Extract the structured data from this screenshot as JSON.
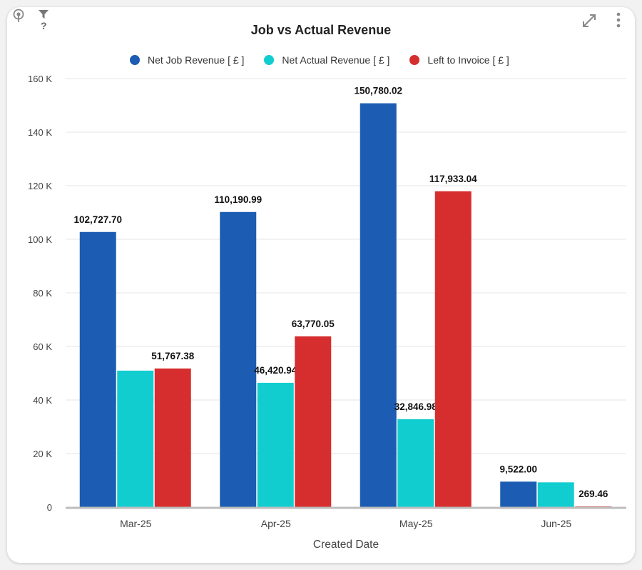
{
  "widget": {
    "title": "Job vs Actual Revenue",
    "help_glyph": "?",
    "icons": [
      "pin-icon",
      "filter-icon",
      "question-icon",
      "expand-icon",
      "kebab-menu-icon"
    ]
  },
  "legend": [
    {
      "label": "Net Job Revenue [ £ ]",
      "color": "#1c5db3"
    },
    {
      "label": "Net Actual Revenue [ £ ]",
      "color": "#12cdd0"
    },
    {
      "label": "Left to Invoice [ £ ]",
      "color": "#d62e2e"
    }
  ],
  "chart_data": {
    "type": "bar",
    "title": "Job vs Actual Revenue",
    "xlabel": "Created Date",
    "ylabel": "",
    "categories": [
      "Mar-25",
      "Apr-25",
      "May-25",
      "Jun-25"
    ],
    "ylim": [
      0,
      160000
    ],
    "yticks": [
      0,
      20000,
      40000,
      60000,
      80000,
      100000,
      120000,
      140000,
      160000
    ],
    "ytick_labels": [
      "0",
      "20 K",
      "40 K",
      "60 K",
      "80 K",
      "100 K",
      "120 K",
      "140 K",
      "160 K"
    ],
    "grid": true,
    "legend_position": "top",
    "series": [
      {
        "name": "Net Job Revenue [ £ ]",
        "color": "#1c5db3",
        "values": [
          102727.7,
          110190.99,
          150780.02,
          9522.0
        ],
        "labels": [
          "102,727.70",
          "110,190.99",
          "150,780.02",
          "9,522.00"
        ]
      },
      {
        "name": "Net Actual Revenue [ £ ]",
        "color": "#12cdd0",
        "values": [
          50960.32,
          46420.94,
          32846.98,
          9252.54
        ],
        "labels": [
          "",
          "46,420.94",
          "32,846.98",
          ""
        ]
      },
      {
        "name": "Left to Invoice [ £ ]",
        "color": "#d62e2e",
        "values": [
          51767.38,
          63770.05,
          117933.04,
          269.46
        ],
        "labels": [
          "51,767.38",
          "63,770.05",
          "117,933.04",
          "269.46"
        ]
      }
    ]
  }
}
